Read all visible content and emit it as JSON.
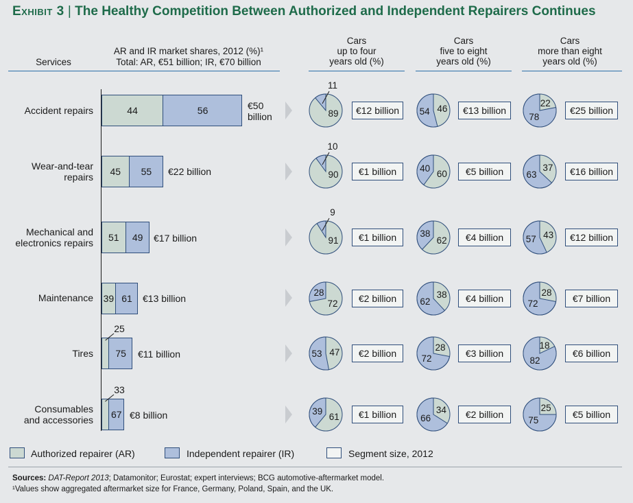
{
  "title": {
    "exhibit": "Exhibit 3",
    "sep": "|",
    "text": "The Healthy Competition Between Authorized and Independent Repairers Continues"
  },
  "headers": {
    "services": "Services",
    "shares_line1": "AR and IR market shares, 2012 (%)¹",
    "shares_line2": "Total: AR, €51 billion; IR, €70 billion",
    "cols": [
      {
        "l1": "Cars",
        "l2": "up to four",
        "l3": "years old (%)"
      },
      {
        "l1": "Cars",
        "l2": "five to eight",
        "l3": "years old (%)"
      },
      {
        "l1": "Cars",
        "l2": "more than eight",
        "l3": "years old (%)"
      }
    ]
  },
  "colors": {
    "ar": "#ccd9d2",
    "ir": "#aebfdc",
    "segment": "#f2f4f3",
    "outline": "#2e4d7a",
    "title": "#1e6b4a"
  },
  "chart_data": {
    "type": "bar",
    "categories": [
      "Accident repairs",
      "Wear-and-tear repairs",
      "Mechanical and electronics repairs",
      "Maintenance",
      "Tires",
      "Consumables and accessories"
    ],
    "series": [
      {
        "name": "Authorized repairer (AR)",
        "values": [
          44,
          45,
          51,
          39,
          25,
          33
        ]
      },
      {
        "name": "Independent repairer (IR)",
        "values": [
          56,
          55,
          49,
          61,
          75,
          67
        ]
      }
    ],
    "totals": [
      "€50 billion",
      "€22 billion",
      "€17 billion",
      "€13 billion",
      "€11 billion",
      "€8 billion"
    ],
    "totals_billion": [
      50,
      22,
      17,
      13,
      11,
      8
    ],
    "pies": [
      {
        "age": "Cars up to four years old (%)",
        "ar": [
          89,
          90,
          91,
          72,
          47,
          61
        ],
        "ir": [
          11,
          10,
          9,
          28,
          53,
          39
        ],
        "segment_size": [
          "€12 billion",
          "€1 billion",
          "€1 billion",
          "€2 billion",
          "€2 billion",
          "€1 billion"
        ]
      },
      {
        "age": "Cars five to eight years old (%)",
        "ar": [
          46,
          60,
          62,
          38,
          28,
          34
        ],
        "ir": [
          54,
          40,
          38,
          62,
          72,
          66
        ],
        "segment_size": [
          "€13 billion",
          "€5 billion",
          "€4 billion",
          "€4 billion",
          "€3 billion",
          "€2 billion"
        ]
      },
      {
        "age": "Cars more than eight years old (%)",
        "ar": [
          22,
          37,
          43,
          28,
          18,
          25
        ],
        "ir": [
          78,
          63,
          57,
          72,
          82,
          75
        ],
        "segment_size": [
          "€25 billion",
          "€16 billion",
          "€12 billion",
          "€7 billion",
          "€6 billion",
          "€5 billion"
        ]
      }
    ]
  },
  "rows": [
    {
      "l1": "Accident repairs",
      "l2": ""
    },
    {
      "l1": "Wear-and-tear",
      "l2": "repairs"
    },
    {
      "l1": "Mechanical and",
      "l2": "electronics repairs"
    },
    {
      "l1": "Maintenance",
      "l2": ""
    },
    {
      "l1": "Tires",
      "l2": ""
    },
    {
      "l1": "Consumables",
      "l2": "and accessories"
    }
  ],
  "total_labels": [
    {
      "l1": "€50",
      "l2": "billion"
    },
    {
      "l1": "€22 billion",
      "l2": ""
    },
    {
      "l1": "€17 billion",
      "l2": ""
    },
    {
      "l1": "€13 billion",
      "l2": ""
    },
    {
      "l1": "€11 billion",
      "l2": ""
    },
    {
      "l1": "€8 billion",
      "l2": ""
    }
  ],
  "legend": {
    "ar": "Authorized repairer (AR)",
    "ir": "Independent repairer (IR)",
    "segment": "Segment size, 2012"
  },
  "sources": {
    "label": "Sources:",
    "italic": "DAT-Report 2013",
    "rest": "; Datamonitor; Eurostat; expert interviews; BCG automotive-aftermarket model.",
    "note": "¹Values show aggregated aftermarket size for France, Germany, Poland, Spain, and the UK."
  }
}
